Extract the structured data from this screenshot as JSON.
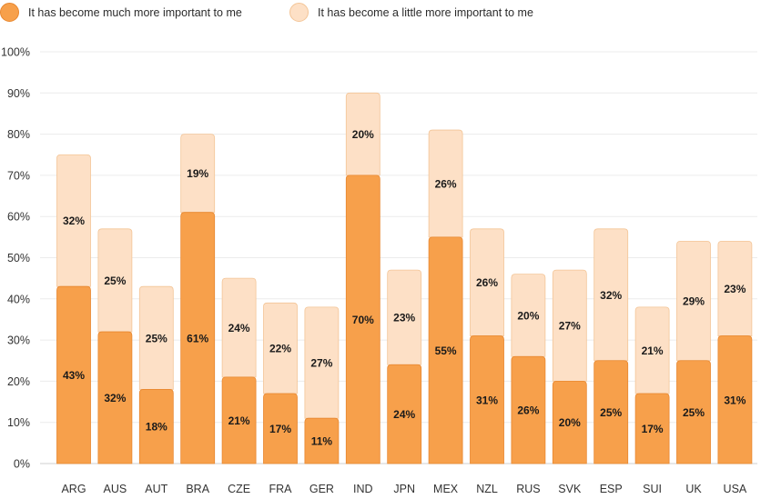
{
  "chart_data": {
    "type": "bar",
    "stacked": true,
    "categories": [
      "ARG",
      "AUS",
      "AUT",
      "BRA",
      "CZE",
      "FRA",
      "GER",
      "IND",
      "JPN",
      "MEX",
      "NZL",
      "RUS",
      "SVK",
      "ESP",
      "SUI",
      "UK",
      "USA"
    ],
    "series": [
      {
        "name": "It has become much more important to me",
        "color": "#f7a04b",
        "values": [
          43,
          32,
          18,
          61,
          21,
          17,
          11,
          70,
          24,
          55,
          31,
          26,
          20,
          25,
          17,
          25,
          31
        ]
      },
      {
        "name": "It has become a little more important to me",
        "color": "#fde0c6",
        "values": [
          32,
          25,
          25,
          19,
          24,
          22,
          27,
          20,
          23,
          26,
          26,
          20,
          27,
          32,
          21,
          29,
          23
        ]
      }
    ],
    "y_ticks": [
      "0%",
      "10%",
      "20%",
      "30%",
      "40%",
      "50%",
      "60%",
      "70%",
      "80%",
      "90%",
      "100%"
    ],
    "ylim": [
      0,
      100
    ],
    "value_suffix": "%",
    "grid": true,
    "legend_position": "top-left"
  }
}
